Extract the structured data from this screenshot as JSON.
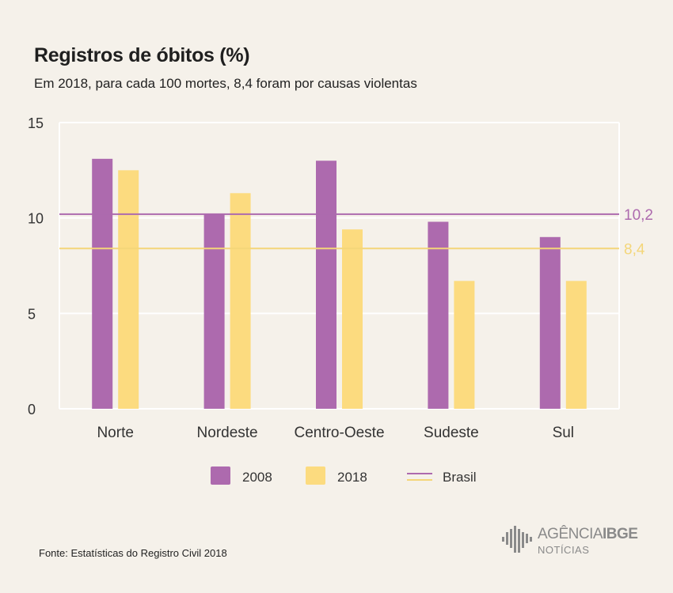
{
  "header": {
    "title": "Registros de óbitos (%)",
    "subtitle": "Em 2018, para cada 100 mortes, 8,4 foram por causas violentas"
  },
  "chart_data": {
    "type": "bar",
    "categories": [
      "Norte",
      "Nordeste",
      "Centro-Oeste",
      "Sudeste",
      "Sul"
    ],
    "series": [
      {
        "name": "2008",
        "values": [
          13.1,
          10.2,
          13.0,
          9.8,
          9.0
        ],
        "color": "#ad6aae"
      },
      {
        "name": "2018",
        "values": [
          12.5,
          11.3,
          9.4,
          6.7,
          6.7
        ],
        "color": "#fcdb7f"
      }
    ],
    "reference_lines": [
      {
        "name": "Brasil",
        "year": "2008",
        "value": 10.2,
        "label": "10,2",
        "color": "#ad6aae"
      },
      {
        "name": "Brasil",
        "year": "2018",
        "value": 8.4,
        "label": "8,4",
        "color": "#f4d679"
      }
    ],
    "ylim": [
      0,
      15
    ],
    "yticks": [
      0,
      5,
      10,
      15
    ],
    "grid": true,
    "legend": [
      "2008",
      "2018",
      "Brasil"
    ],
    "legend_position": "bottom"
  },
  "footer": {
    "source": "Fonte: Estatísticas do Registro Civil 2018",
    "logo_main_light": "AGÊNCIA",
    "logo_main_bold": "IBGE",
    "logo_sub": "NOTÍCIAS"
  }
}
